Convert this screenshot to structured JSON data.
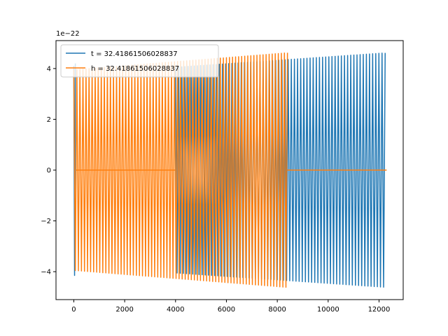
{
  "chart_data": {
    "type": "line",
    "title": "",
    "xlabel": "",
    "ylabel": "",
    "y_scale_label": "1e−22",
    "xlim": [
      -700,
      12950
    ],
    "ylim": [
      -5.1,
      5.1
    ],
    "x_ticks": [
      0,
      2000,
      4000,
      6000,
      8000,
      10000,
      12000
    ],
    "y_ticks": [
      -4,
      -2,
      0,
      2,
      4
    ],
    "grid": false,
    "legend_position": "top-left",
    "series": [
      {
        "name": "t = 32.41861506028837",
        "color": "#1f77b4",
        "segments": [
          {
            "x_start": 0,
            "x_end": 60,
            "period": 60,
            "amp_start": 4.1,
            "amp_end": 4.2
          },
          {
            "x_start": 4000,
            "x_end": 12300,
            "period": 123,
            "amp_start": 4.05,
            "amp_end": 4.62
          }
        ]
      },
      {
        "name": "h = 32.41861506028837",
        "color": "#ff7f0e",
        "segments": [
          {
            "x_start": 0,
            "x_end": 8400,
            "period": 120,
            "amp_start": 3.95,
            "amp_end": 4.62
          }
        ],
        "flat_zero_ranges": [
          [
            100,
            4000
          ],
          [
            8400,
            12300
          ]
        ]
      }
    ]
  }
}
